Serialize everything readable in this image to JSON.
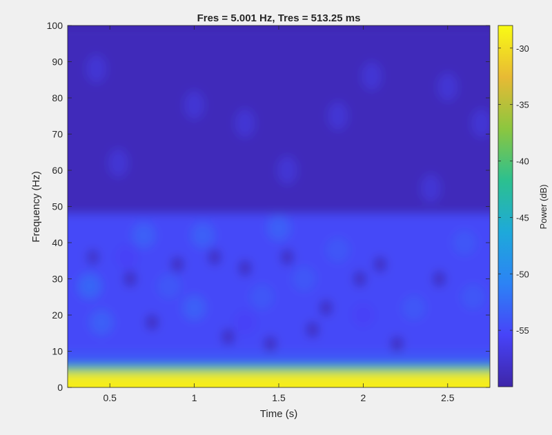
{
  "chart_data": {
    "type": "heatmap",
    "title": "Fres = 5.001 Hz, Tres = 513.25 ms",
    "xlabel": "Time (s)",
    "ylabel": "Frequency (Hz)",
    "xlim": [
      0.25,
      2.75
    ],
    "ylim": [
      0,
      100
    ],
    "xticks": [
      0.5,
      1,
      1.5,
      2,
      2.5
    ],
    "xtick_labels": [
      "0.5",
      "1",
      "1.5",
      "2",
      "2.5"
    ],
    "yticks": [
      0,
      10,
      20,
      30,
      40,
      50,
      60,
      70,
      80,
      90,
      100
    ],
    "ytick_labels": [
      "0",
      "10",
      "20",
      "30",
      "40",
      "50",
      "60",
      "70",
      "80",
      "90",
      "100"
    ],
    "colorbar": {
      "label": "Power (dB)",
      "range": [
        -60,
        -28
      ],
      "ticks": [
        -30,
        -35,
        -40,
        -45,
        -50,
        -55
      ],
      "tick_labels": [
        "-30",
        "-35",
        "-40",
        "-45",
        "-50",
        "-55"
      ],
      "colormap": [
        "#3e26a8",
        "#4743f8",
        "#2c83f5",
        "#1ea9da",
        "#2cc08f",
        "#8cc63f",
        "#e8ba34",
        "#f9fb14"
      ]
    },
    "colormap_name": "parula",
    "bands": [
      {
        "freq_range": [
          0,
          4
        ],
        "power_db": -29
      },
      {
        "freq_range": [
          4,
          6
        ],
        "power_db": -40
      },
      {
        "freq_range": [
          6,
          10
        ],
        "power_db": -54
      },
      {
        "freq_range": [
          10,
          48
        ],
        "power_db": -55
      },
      {
        "freq_range": [
          48,
          100
        ],
        "power_db": -59
      }
    ],
    "blobs": [
      {
        "t": 0.38,
        "f": 28,
        "power_db": -53
      },
      {
        "t": 0.45,
        "f": 18,
        "power_db": -53.5
      },
      {
        "t": 0.7,
        "f": 42,
        "power_db": -53.5
      },
      {
        "t": 0.85,
        "f": 28,
        "power_db": -54
      },
      {
        "t": 1.0,
        "f": 22,
        "power_db": -53.5
      },
      {
        "t": 1.05,
        "f": 42,
        "power_db": -53.5
      },
      {
        "t": 1.4,
        "f": 25,
        "power_db": -54
      },
      {
        "t": 1.5,
        "f": 44,
        "power_db": -53.5
      },
      {
        "t": 1.65,
        "f": 30,
        "power_db": -54
      },
      {
        "t": 1.85,
        "f": 38,
        "power_db": -54
      },
      {
        "t": 2.3,
        "f": 22,
        "power_db": -54
      },
      {
        "t": 2.6,
        "f": 40,
        "power_db": -54
      },
      {
        "t": 2.65,
        "f": 25,
        "power_db": -54
      },
      {
        "t": 0.6,
        "f": 36,
        "power_db": -55.5
      },
      {
        "t": 1.3,
        "f": 18,
        "power_db": -55.5
      },
      {
        "t": 2.0,
        "f": 20,
        "power_db": -55.5
      }
    ],
    "holes": [
      {
        "t": 0.62,
        "f": 30,
        "power_db": -59
      },
      {
        "t": 0.9,
        "f": 34,
        "power_db": -59
      },
      {
        "t": 1.12,
        "f": 36,
        "power_db": -59
      },
      {
        "t": 1.3,
        "f": 33,
        "power_db": -59
      },
      {
        "t": 1.55,
        "f": 36,
        "power_db": -59
      },
      {
        "t": 1.78,
        "f": 22,
        "power_db": -59
      },
      {
        "t": 1.98,
        "f": 30,
        "power_db": -59
      },
      {
        "t": 2.1,
        "f": 34,
        "power_db": -59
      },
      {
        "t": 2.45,
        "f": 30,
        "power_db": -59
      },
      {
        "t": 0.75,
        "f": 18,
        "power_db": -59
      },
      {
        "t": 1.2,
        "f": 14,
        "power_db": -59
      },
      {
        "t": 1.45,
        "f": 12,
        "power_db": -59
      },
      {
        "t": 2.2,
        "f": 12,
        "power_db": -59
      },
      {
        "t": 0.4,
        "f": 36,
        "power_db": -58.5
      },
      {
        "t": 1.7,
        "f": 16,
        "power_db": -59
      }
    ],
    "upper_patches": [
      {
        "t": 0.42,
        "f": 88,
        "power_db": -57.5
      },
      {
        "t": 1.0,
        "f": 78,
        "power_db": -57.5
      },
      {
        "t": 1.3,
        "f": 73,
        "power_db": -57.5
      },
      {
        "t": 1.85,
        "f": 75,
        "power_db": -57.5
      },
      {
        "t": 2.05,
        "f": 86,
        "power_db": -57.5
      },
      {
        "t": 2.5,
        "f": 83,
        "power_db": -57.5
      },
      {
        "t": 2.7,
        "f": 73,
        "power_db": -57.5
      },
      {
        "t": 0.55,
        "f": 62,
        "power_db": -57.5
      },
      {
        "t": 1.55,
        "f": 60,
        "power_db": -57.5
      },
      {
        "t": 2.4,
        "f": 55,
        "power_db": -57.5
      }
    ]
  }
}
